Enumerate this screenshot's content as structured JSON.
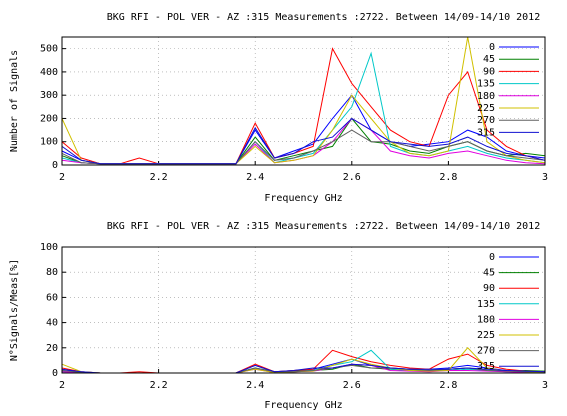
{
  "chart_data": [
    {
      "type": "line",
      "title": "BKG RFI - POL VER - AZ :315 Measurements :2722. Between 14/09-14/10 2012",
      "x_label": "Frequency GHz",
      "y_label": "Number of Signals",
      "x": [
        2,
        2.04,
        2.08,
        2.12,
        2.16,
        2.2,
        2.24,
        2.28,
        2.32,
        2.36,
        2.4,
        2.44,
        2.48,
        2.52,
        2.56,
        2.6,
        2.64,
        2.68,
        2.72,
        2.76,
        2.8,
        2.84,
        2.88,
        2.92,
        2.96,
        3
      ],
      "xlim": [
        2,
        3
      ],
      "xticks": [
        2,
        2.2,
        2.4,
        2.6,
        2.8,
        3
      ],
      "ylim": [
        0,
        550
      ],
      "yticks": [
        0,
        100,
        200,
        300,
        400,
        500
      ],
      "grid": true,
      "legend": "upper right",
      "series": [
        {
          "name": "0",
          "color": "#0000ff",
          "values": [
            60,
            20,
            5,
            5,
            5,
            5,
            5,
            5,
            5,
            5,
            150,
            30,
            60,
            90,
            200,
            300,
            150,
            100,
            80,
            90,
            100,
            150,
            120,
            60,
            40,
            30
          ]
        },
        {
          "name": "45",
          "color": "#008000",
          "values": [
            40,
            10,
            5,
            5,
            5,
            5,
            5,
            5,
            5,
            5,
            120,
            20,
            40,
            60,
            80,
            200,
            100,
            90,
            60,
            50,
            80,
            100,
            60,
            40,
            50,
            40
          ]
        },
        {
          "name": "90",
          "color": "#ff0000",
          "values": [
            100,
            30,
            5,
            5,
            30,
            5,
            5,
            5,
            5,
            5,
            180,
            30,
            50,
            80,
            500,
            350,
            250,
            150,
            100,
            80,
            300,
            400,
            150,
            80,
            40,
            20
          ]
        },
        {
          "name": "135",
          "color": "#00c8c8",
          "values": [
            30,
            10,
            5,
            5,
            5,
            5,
            5,
            5,
            5,
            5,
            100,
            10,
            30,
            50,
            150,
            250,
            480,
            80,
            50,
            40,
            60,
            80,
            50,
            30,
            20,
            10
          ]
        },
        {
          "name": "180",
          "color": "#e000e0",
          "values": [
            20,
            10,
            5,
            5,
            5,
            5,
            5,
            5,
            5,
            5,
            90,
            10,
            20,
            40,
            100,
            200,
            150,
            60,
            40,
            30,
            50,
            60,
            40,
            20,
            10,
            5
          ]
        },
        {
          "name": "225",
          "color": "#d0c000",
          "values": [
            200,
            20,
            5,
            5,
            5,
            5,
            5,
            5,
            5,
            5,
            80,
            10,
            20,
            40,
            150,
            300,
            200,
            100,
            50,
            40,
            60,
            550,
            100,
            40,
            20,
            10
          ]
        },
        {
          "name": "270",
          "color": "#606060",
          "values": [
            50,
            10,
            5,
            5,
            5,
            5,
            5,
            5,
            5,
            5,
            100,
            20,
            30,
            60,
            100,
            150,
            100,
            100,
            80,
            60,
            80,
            100,
            60,
            40,
            30,
            20
          ]
        },
        {
          "name": "315",
          "color": "#1010d0",
          "values": [
            80,
            20,
            5,
            5,
            5,
            5,
            5,
            5,
            5,
            5,
            160,
            30,
            50,
            100,
            120,
            200,
            150,
            100,
            90,
            80,
            90,
            120,
            80,
            50,
            40,
            20
          ]
        }
      ]
    },
    {
      "type": "line",
      "title": "BKG RFI - POL VER - AZ :315 Measurements :2722. Between 14/09-14/10 2012",
      "x_label": "Frequency GHz",
      "y_label": "N°Signals/Meas[%]",
      "x": [
        2,
        2.04,
        2.08,
        2.12,
        2.16,
        2.2,
        2.24,
        2.28,
        2.32,
        2.36,
        2.4,
        2.44,
        2.48,
        2.52,
        2.56,
        2.6,
        2.64,
        2.68,
        2.72,
        2.76,
        2.8,
        2.84,
        2.88,
        2.92,
        2.96,
        3
      ],
      "xlim": [
        2,
        3
      ],
      "xticks": [
        2,
        2.2,
        2.4,
        2.6,
        2.8,
        3
      ],
      "ylim": [
        0,
        100
      ],
      "yticks": [
        0,
        20,
        40,
        60,
        80,
        100
      ],
      "grid": true,
      "legend": "upper right",
      "series": [
        {
          "name": "0",
          "color": "#0000ff",
          "values": [
            2,
            1,
            0,
            0,
            0,
            0,
            0,
            0,
            0,
            0,
            6,
            1,
            2,
            3,
            7,
            11,
            6,
            4,
            3,
            3,
            4,
            6,
            4,
            2,
            1,
            1
          ]
        },
        {
          "name": "45",
          "color": "#008000",
          "values": [
            1.5,
            0.4,
            0,
            0,
            0,
            0,
            0,
            0,
            0,
            0,
            4,
            1,
            1.5,
            2,
            3,
            7,
            4,
            3,
            2,
            2,
            3,
            4,
            2,
            1.5,
            2,
            1.5
          ]
        },
        {
          "name": "90",
          "color": "#ff0000",
          "values": [
            4,
            1,
            0,
            0,
            1,
            0,
            0,
            0,
            0,
            0,
            7,
            1,
            2,
            3,
            18,
            13,
            9,
            6,
            4,
            3,
            11,
            15,
            6,
            3,
            1.5,
            1
          ]
        },
        {
          "name": "135",
          "color": "#00c8c8",
          "values": [
            1,
            0.4,
            0,
            0,
            0,
            0,
            0,
            0,
            0,
            0,
            4,
            0.4,
            1,
            2,
            6,
            9,
            18,
            3,
            2,
            1.5,
            2,
            3,
            2,
            1,
            1,
            0.4
          ]
        },
        {
          "name": "180",
          "color": "#e000e0",
          "values": [
            1,
            0.4,
            0,
            0,
            0,
            0,
            0,
            0,
            0,
            0,
            3,
            0.4,
            1,
            1.5,
            4,
            7,
            6,
            2,
            1.5,
            1,
            2,
            2,
            1.5,
            1,
            0.4,
            0
          ]
        },
        {
          "name": "225",
          "color": "#d0c000",
          "values": [
            7,
            1,
            0,
            0,
            0,
            0,
            0,
            0,
            0,
            0,
            3,
            0.4,
            1,
            1.5,
            6,
            11,
            7,
            4,
            2,
            1.5,
            2,
            20,
            4,
            1.5,
            1,
            0.4
          ]
        },
        {
          "name": "270",
          "color": "#606060",
          "values": [
            2,
            0.4,
            0,
            0,
            0,
            0,
            0,
            0,
            0,
            0,
            4,
            1,
            1,
            2,
            4,
            6,
            4,
            4,
            3,
            2,
            3,
            4,
            2,
            1.5,
            1,
            1
          ]
        },
        {
          "name": "315",
          "color": "#1010d0",
          "values": [
            3,
            1,
            0,
            0,
            0,
            0,
            0,
            0,
            0,
            0,
            6,
            1,
            2,
            4,
            4,
            7,
            6,
            4,
            3,
            3,
            3,
            4,
            3,
            2,
            1.5,
            1
          ]
        }
      ]
    }
  ]
}
